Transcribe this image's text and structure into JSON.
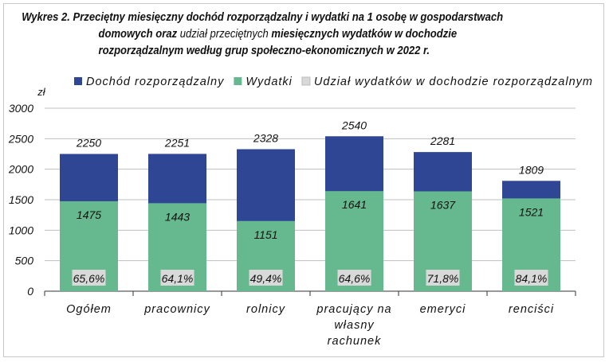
{
  "title_parts": {
    "line1_bold": "Wykres 2. Przeciętny miesięczny dochód rozporządzalny i wydatki na 1 osobę w gospodarstwach",
    "line2_bold_a": "domowych oraz",
    "line2_normal": " udział przeciętnych ",
    "line2_bold_b": "miesięcznych wydatków w dochodzie",
    "line3_bold": "rozporządzalnym według grup społeczno-ekonomicznych w 2022 r."
  },
  "chart_data": {
    "type": "bar",
    "title": "Wykres 2. Przeciętny miesięczny dochód rozporządzalny i wydatki na 1 osobę w gospodarstwach domowych oraz udział przeciętnych miesięcznych wydatków w dochodzie rozporządzalnym według grup społeczno-ekonomicznych w 2022 r.",
    "ylabel": "zł",
    "ylim": [
      0,
      3000
    ],
    "yticks": [
      0,
      500,
      1000,
      1500,
      2000,
      2500,
      3000
    ],
    "grid": true,
    "legend_position": "top",
    "categories": [
      "Ogółem",
      "pracownicy",
      "rolnicy",
      "pracujący na własny rachunek",
      "emeryci",
      "renciści"
    ],
    "category_label_lines": [
      [
        "Ogółem"
      ],
      [
        "pracownicy"
      ],
      [
        "rolnicy"
      ],
      [
        "pracujący na",
        "własny",
        "rachunek"
      ],
      [
        "emeryci"
      ],
      [
        "renciści"
      ]
    ],
    "series": [
      {
        "name": "Dochód rozporządzalny",
        "color": "#2E4693",
        "values": [
          2250,
          2251,
          2328,
          2540,
          2281,
          1809
        ]
      },
      {
        "name": "Wydatki",
        "color": "#66B98E",
        "values": [
          1475,
          1443,
          1151,
          1641,
          1637,
          1521
        ]
      },
      {
        "name": "Udział wydatków w dochodzie rozporządzalnym",
        "color": "#D9D9D9",
        "values": [
          "65,6%",
          "64,1%",
          "49,4%",
          "64,6%",
          "71,8%",
          "84,1%"
        ]
      }
    ]
  }
}
